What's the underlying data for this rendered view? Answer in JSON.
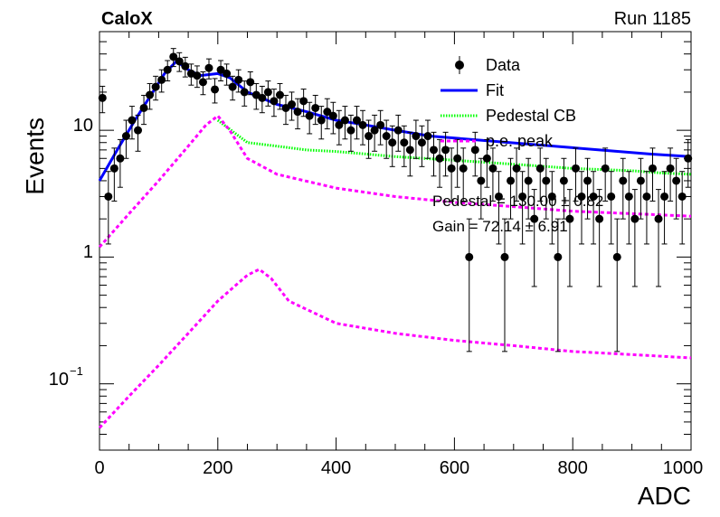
{
  "header": {
    "experiment": "CaloX",
    "run": "Run 1185"
  },
  "chart_data": {
    "type": "scatter",
    "xlabel": "ADC",
    "ylabel": "Events",
    "xlim": [
      0,
      1000
    ],
    "ylim": [
      0.03,
      60
    ],
    "yscale": "log",
    "x_ticks": [
      0,
      200,
      400,
      600,
      800,
      1000
    ],
    "x_tick_labels": [
      "0",
      "200",
      "400",
      "600",
      "800",
      "1000"
    ],
    "y_tick_labels": {
      "tenth": "10",
      "tenth_exp": "−1",
      "one": "1",
      "ten": "10"
    },
    "legend": {
      "position": "top-right",
      "entries": [
        {
          "label": "Data",
          "style": "marker",
          "color": "#000000"
        },
        {
          "label": "Fit",
          "style": "solid",
          "color": "#0000ff"
        },
        {
          "label": "Pedestal CB",
          "style": "dotted",
          "color": "#00ff00"
        },
        {
          "label": "p.e. peak",
          "style": "dashed",
          "color": "#ff00ff"
        }
      ]
    },
    "annotations": [
      "Pedestal = 130.00 ± 0.82",
      "Gain = 72.14 ± 6.91"
    ],
    "series": [
      {
        "name": "Data",
        "color": "#000000",
        "x": [
          5,
          15,
          25,
          35,
          45,
          55,
          65,
          75,
          85,
          95,
          105,
          115,
          125,
          135,
          145,
          155,
          165,
          175,
          185,
          195,
          205,
          215,
          225,
          235,
          245,
          255,
          265,
          275,
          285,
          295,
          305,
          315,
          325,
          335,
          345,
          355,
          365,
          375,
          385,
          395,
          405,
          415,
          425,
          435,
          445,
          455,
          465,
          475,
          485,
          495,
          505,
          515,
          525,
          535,
          545,
          555,
          565,
          575,
          585,
          595,
          605,
          615,
          625,
          635,
          645,
          655,
          665,
          675,
          685,
          695,
          705,
          715,
          725,
          735,
          745,
          755,
          765,
          775,
          785,
          795,
          805,
          815,
          825,
          835,
          845,
          855,
          865,
          875,
          885,
          895,
          905,
          915,
          925,
          935,
          945,
          955,
          965,
          975,
          985,
          995
        ],
        "y": [
          18,
          3,
          5,
          6,
          9,
          12,
          10,
          15,
          19,
          22,
          25,
          30,
          38,
          35,
          32,
          28,
          27,
          24,
          31,
          21,
          30,
          28,
          22,
          25,
          20,
          24,
          19,
          18,
          20,
          17,
          19,
          15,
          16,
          14,
          17,
          13,
          15,
          12,
          14,
          13,
          11,
          12,
          10,
          12,
          11,
          9,
          10,
          11,
          9,
          8,
          10,
          8,
          7,
          9,
          8,
          9,
          7,
          6,
          7,
          5,
          6,
          5,
          1,
          7,
          4,
          6,
          5,
          3,
          1,
          4,
          5,
          3,
          4,
          2,
          5,
          4,
          3,
          1,
          4,
          2,
          5,
          3,
          4,
          3,
          2,
          5,
          3,
          1,
          4,
          3,
          2,
          4,
          3,
          5,
          2,
          3,
          5,
          4,
          3,
          6
        ]
      },
      {
        "name": "Fit",
        "color": "#0000ff",
        "x": [
          0,
          30,
          60,
          90,
          110,
          130,
          150,
          170,
          200,
          220,
          250,
          300,
          350,
          400,
          450,
          500,
          560,
          930,
          1000
        ],
        "y": [
          4,
          7,
          12,
          20,
          28,
          35,
          30,
          27,
          28,
          26,
          20,
          16,
          14,
          12,
          11,
          10,
          9,
          6.5,
          6.2
        ]
      },
      {
        "name": "Pedestal CB",
        "color": "#00ff00",
        "x": [
          200,
          250,
          300,
          350,
          400,
          450,
          500,
          550,
          600,
          650,
          700,
          750,
          800,
          850,
          900,
          950,
          1000
        ],
        "y": [
          12,
          8,
          7.5,
          7,
          6.8,
          6.5,
          6.2,
          6,
          5.8,
          5.6,
          5.4,
          5.2,
          5,
          4.9,
          4.8,
          4.6,
          4.5
        ]
      },
      {
        "name": "p.e. peak",
        "color": "#ff00ff",
        "x": [
          0,
          50,
          100,
          150,
          180,
          200,
          220,
          250,
          300,
          400,
          500,
          600,
          700,
          800,
          900,
          1000
        ],
        "y": [
          1.2,
          2.2,
          4,
          7.5,
          11,
          13,
          10,
          6,
          4.5,
          3.5,
          3,
          2.7,
          2.5,
          2.3,
          2.2,
          2.1
        ]
      },
      {
        "name": "p.e. peak",
        "color": "#ff00ff",
        "x": [
          0,
          50,
          100,
          150,
          200,
          250,
          270,
          290,
          320,
          400,
          500,
          600,
          700,
          800,
          900,
          1000
        ],
        "y": [
          0.045,
          0.08,
          0.14,
          0.25,
          0.45,
          0.72,
          0.8,
          0.68,
          0.45,
          0.3,
          0.25,
          0.22,
          0.2,
          0.18,
          0.17,
          0.16
        ]
      }
    ]
  }
}
